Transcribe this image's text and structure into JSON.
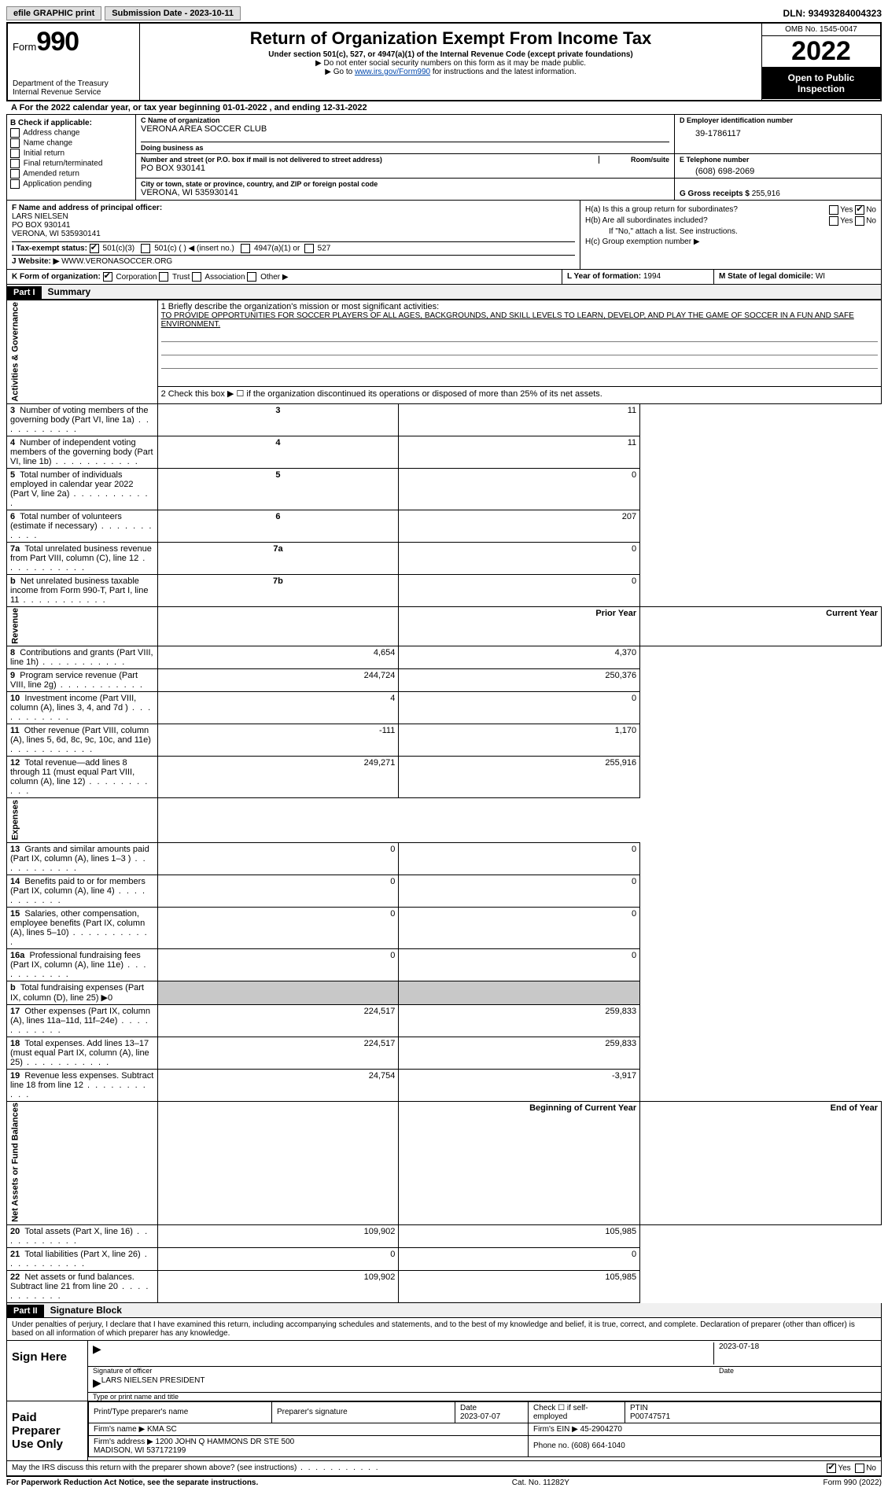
{
  "topbar": {
    "efile": "efile GRAPHIC print",
    "submission": "Submission Date - 2023-10-11",
    "dln_label": "DLN:",
    "dln": "93493284004323"
  },
  "header": {
    "form_prefix": "Form",
    "form_number": "990",
    "dept": "Department of the Treasury\nInternal Revenue Service",
    "title": "Return of Organization Exempt From Income Tax",
    "subtitle": "Under section 501(c), 527, or 4947(a)(1) of the Internal Revenue Code (except private foundations)",
    "note1": "▶ Do not enter social security numbers on this form as it may be made public.",
    "note2_pre": "▶ Go to ",
    "note2_link": "www.irs.gov/Form990",
    "note2_post": " for instructions and the latest information.",
    "omb": "OMB No. 1545-0047",
    "year": "2022",
    "open": "Open to Public Inspection"
  },
  "line_a": "A For the 2022 calendar year, or tax year beginning 01-01-2022   , and ending 12-31-2022",
  "section_b": {
    "label": "B Check if applicable:",
    "items": [
      "Address change",
      "Name change",
      "Initial return",
      "Final return/terminated",
      "Amended return",
      "Application pending"
    ]
  },
  "section_c": {
    "name_lbl": "C Name of organization",
    "name": "VERONA AREA SOCCER CLUB",
    "dba_lbl": "Doing business as",
    "dba": "",
    "addr_lbl": "Number and street (or P.O. box if mail is not delivered to street address)",
    "room_lbl": "Room/suite",
    "addr": "PO BOX 930141",
    "city_lbl": "City or town, state or province, country, and ZIP or foreign postal code",
    "city": "VERONA, WI  535930141"
  },
  "section_d": {
    "lbl": "D Employer identification number",
    "val": "39-1786117"
  },
  "section_e": {
    "lbl": "E Telephone number",
    "val": "(608) 698-2069"
  },
  "section_g": {
    "lbl": "G Gross receipts $",
    "val": "255,916"
  },
  "section_f": {
    "lbl": "F  Name and address of principal officer:",
    "name": "LARS NIELSEN",
    "addr1": "PO BOX 930141",
    "addr2": "VERONA, WI  535930141"
  },
  "section_h": {
    "ha": "H(a)  Is this a group return for subordinates?",
    "hb": "H(b)  Are all subordinates included?",
    "hb_note": "If \"No,\" attach a list. See instructions.",
    "hc": "H(c)  Group exemption number ▶",
    "yes": "Yes",
    "no": "No"
  },
  "line_i": {
    "lbl": "I   Tax-exempt status:",
    "opt1": "501(c)(3)",
    "opt2": "501(c) (  ) ◀ (insert no.)",
    "opt3": "4947(a)(1) or",
    "opt4": "527"
  },
  "line_j": {
    "lbl": "J   Website: ▶",
    "val": "WWW.VERONASOCCER.ORG"
  },
  "line_k": {
    "lbl": "K Form of organization:",
    "opts": [
      "Corporation",
      "Trust",
      "Association",
      "Other ▶"
    ]
  },
  "line_l": {
    "lbl": "L Year of formation:",
    "val": "1994"
  },
  "line_m": {
    "lbl": "M State of legal domicile:",
    "val": "WI"
  },
  "part1": {
    "hdr": "Part I",
    "title": "Summary"
  },
  "mission": {
    "lbl": "1   Briefly describe the organization's mission or most significant activities:",
    "text": "TO PROVIDE OPPORTUNITIES FOR SOCCER PLAYERS OF ALL AGES, BACKGROUNDS, AND SKILL LEVELS TO LEARN, DEVELOP, AND PLAY THE GAME OF SOCCER IN A FUN AND SAFE ENVIRONMENT."
  },
  "line2": "2   Check this box ▶ ☐ if the organization discontinued its operations or disposed of more than 25% of its net assets.",
  "tabs": {
    "gov": "Activities & Governance",
    "rev": "Revenue",
    "exp": "Expenses",
    "net": "Net Assets or Fund Balances"
  },
  "rows_gov": [
    {
      "n": "3",
      "t": "Number of voting members of the governing body (Part VI, line 1a)",
      "c": "3",
      "v": "11"
    },
    {
      "n": "4",
      "t": "Number of independent voting members of the governing body (Part VI, line 1b)",
      "c": "4",
      "v": "11"
    },
    {
      "n": "5",
      "t": "Total number of individuals employed in calendar year 2022 (Part V, line 2a)",
      "c": "5",
      "v": "0"
    },
    {
      "n": "6",
      "t": "Total number of volunteers (estimate if necessary)",
      "c": "6",
      "v": "207"
    },
    {
      "n": "7a",
      "t": "Total unrelated business revenue from Part VIII, column (C), line 12",
      "c": "7a",
      "v": "0"
    },
    {
      "n": "b",
      "t": "Net unrelated business taxable income from Form 990-T, Part I, line 11",
      "c": "7b",
      "v": "0"
    }
  ],
  "col_hdrs": {
    "prior": "Prior Year",
    "current": "Current Year",
    "boy": "Beginning of Current Year",
    "eoy": "End of Year"
  },
  "rows_rev": [
    {
      "n": "8",
      "t": "Contributions and grants (Part VIII, line 1h)",
      "p": "4,654",
      "c": "4,370"
    },
    {
      "n": "9",
      "t": "Program service revenue (Part VIII, line 2g)",
      "p": "244,724",
      "c": "250,376"
    },
    {
      "n": "10",
      "t": "Investment income (Part VIII, column (A), lines 3, 4, and 7d )",
      "p": "4",
      "c": "0"
    },
    {
      "n": "11",
      "t": "Other revenue (Part VIII, column (A), lines 5, 6d, 8c, 9c, 10c, and 11e)",
      "p": "-111",
      "c": "1,170"
    },
    {
      "n": "12",
      "t": "Total revenue—add lines 8 through 11 (must equal Part VIII, column (A), line 12)",
      "p": "249,271",
      "c": "255,916"
    }
  ],
  "rows_exp": [
    {
      "n": "13",
      "t": "Grants and similar amounts paid (Part IX, column (A), lines 1–3 )",
      "p": "0",
      "c": "0"
    },
    {
      "n": "14",
      "t": "Benefits paid to or for members (Part IX, column (A), line 4)",
      "p": "0",
      "c": "0"
    },
    {
      "n": "15",
      "t": "Salaries, other compensation, employee benefits (Part IX, column (A), lines 5–10)",
      "p": "0",
      "c": "0"
    },
    {
      "n": "16a",
      "t": "Professional fundraising fees (Part IX, column (A), line 11e)",
      "p": "0",
      "c": "0"
    },
    {
      "n": "b",
      "t": "Total fundraising expenses (Part IX, column (D), line 25) ▶0",
      "shade": true
    },
    {
      "n": "17",
      "t": "Other expenses (Part IX, column (A), lines 11a–11d, 11f–24e)",
      "p": "224,517",
      "c": "259,833"
    },
    {
      "n": "18",
      "t": "Total expenses. Add lines 13–17 (must equal Part IX, column (A), line 25)",
      "p": "224,517",
      "c": "259,833"
    },
    {
      "n": "19",
      "t": "Revenue less expenses. Subtract line 18 from line 12",
      "p": "24,754",
      "c": "-3,917"
    }
  ],
  "rows_net": [
    {
      "n": "20",
      "t": "Total assets (Part X, line 16)",
      "p": "109,902",
      "c": "105,985"
    },
    {
      "n": "21",
      "t": "Total liabilities (Part X, line 26)",
      "p": "0",
      "c": "0"
    },
    {
      "n": "22",
      "t": "Net assets or fund balances. Subtract line 21 from line 20",
      "p": "109,902",
      "c": "105,985"
    }
  ],
  "part2": {
    "hdr": "Part II",
    "title": "Signature Block"
  },
  "perjury": "Under penalties of perjury, I declare that I have examined this return, including accompanying schedules and statements, and to the best of my knowledge and belief, it is true, correct, and complete. Declaration of preparer (other than officer) is based on all information of which preparer has any knowledge.",
  "sign": {
    "here": "Sign Here",
    "sig_lbl": "Signature of officer",
    "date_lbl": "Date",
    "sig_date": "2023-07-18",
    "name": "LARS NIELSEN  PRESIDENT",
    "name_lbl": "Type or print name and title"
  },
  "prep": {
    "title": "Paid Preparer Use Only",
    "h1": "Print/Type preparer's name",
    "h2": "Preparer's signature",
    "h3": "Date",
    "h3v": "2023-07-07",
    "h4": "Check ☐ if self-employed",
    "h5": "PTIN",
    "h5v": "P00747571",
    "firm_lbl": "Firm's name    ▶",
    "firm": "KMA SC",
    "ein_lbl": "Firm's EIN ▶",
    "ein": "45-2904270",
    "addr_lbl": "Firm's address ▶",
    "addr": "1200 JOHN Q HAMMONS DR STE 500\nMADISON, WI  537172199",
    "phone_lbl": "Phone no.",
    "phone": "(608) 664-1040"
  },
  "may_irs": "May the IRS discuss this return with the preparer shown above? (see instructions)",
  "footer": {
    "left": "For Paperwork Reduction Act Notice, see the separate instructions.",
    "mid": "Cat. No. 11282Y",
    "right": "Form 990 (2022)"
  }
}
